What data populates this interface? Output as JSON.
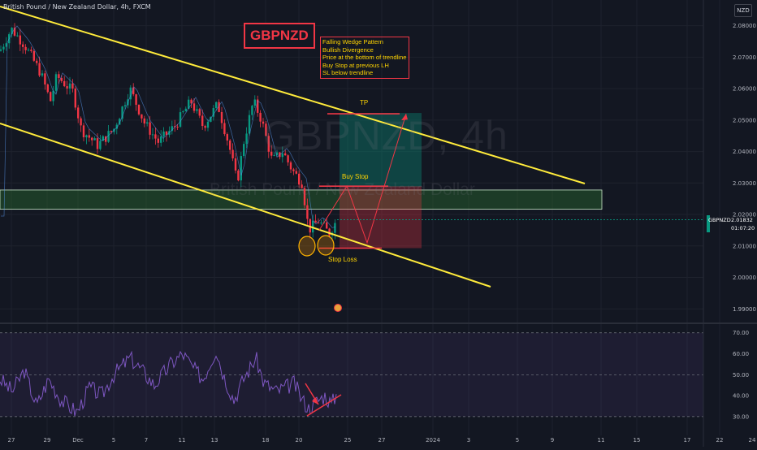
{
  "header": {
    "symbol_desc": "British Pound / New Zealand Dollar, 4h, FXCM"
  },
  "currency": "NZD",
  "price_tag": {
    "symbol": "GBPNZD",
    "price": "2.01832",
    "countdown": "01:07:20",
    "color": "#089981"
  },
  "watermark": {
    "symbol": "GBPNZD, 4h",
    "name": "British Pound / New Zealand Dollar"
  },
  "annotations": {
    "title": "GBPNZD",
    "notes": [
      "Falling Wedge Pattern",
      "Bullish Divergence",
      "Price at the bottom of trendline",
      "Buy Stop at previous LH",
      "SL below trendline"
    ],
    "tp_label": "TP",
    "buy_stop_label": "Buy Stop",
    "stop_loss_label": "Stop Loss"
  },
  "colors": {
    "background": "#131722",
    "up": "#089981",
    "down": "#f23645",
    "trendline": "#ffeb3b",
    "annotation_text": "#ffd400",
    "rsi_line": "#7e57c2",
    "rsi_band": "#7e57c2",
    "zone": "#2e7d32"
  },
  "chart_data": [
    {
      "type": "candlestick",
      "price_axis": {
        "ticks": [
          "2.08000",
          "2.07000",
          "2.06000",
          "2.05000",
          "2.04000",
          "2.03000",
          "2.02000",
          "2.01000",
          "2.00000",
          "1.99000"
        ],
        "range": [
          1.988,
          2.083
        ]
      },
      "x_axis_labels": [
        "27",
        "29",
        "Dec",
        "5",
        "7",
        "11",
        "13",
        "18",
        "20",
        "25",
        "27",
        "2024",
        "3",
        "5",
        "9",
        "11",
        "15",
        "17",
        "22",
        "24"
      ],
      "ohlc_sample_start": 2.077,
      "ohlc_sample_end": 2.0183,
      "last_price": 2.01832,
      "trendlines": [
        {
          "name": "upper",
          "from": [
            "27",
            2.084
          ],
          "to": [
            "15",
            2.029
          ]
        },
        {
          "name": "lower",
          "from": [
            "27",
            2.05
          ],
          "to": [
            "17",
            2.002
          ]
        }
      ],
      "levels": {
        "take_profit": 2.052,
        "buy_stop": 2.029,
        "stop_loss": 2.0093,
        "support_zone": [
          2.0245,
          2.027
        ]
      }
    },
    {
      "type": "line",
      "name": "RSI",
      "y_axis": {
        "ticks": [
          "70.00",
          "60.00",
          "50.00",
          "40.00",
          "30.00"
        ],
        "range": [
          28,
          73
        ]
      },
      "upper_band": 70,
      "lower_band": 30,
      "mid": 50
    }
  ]
}
